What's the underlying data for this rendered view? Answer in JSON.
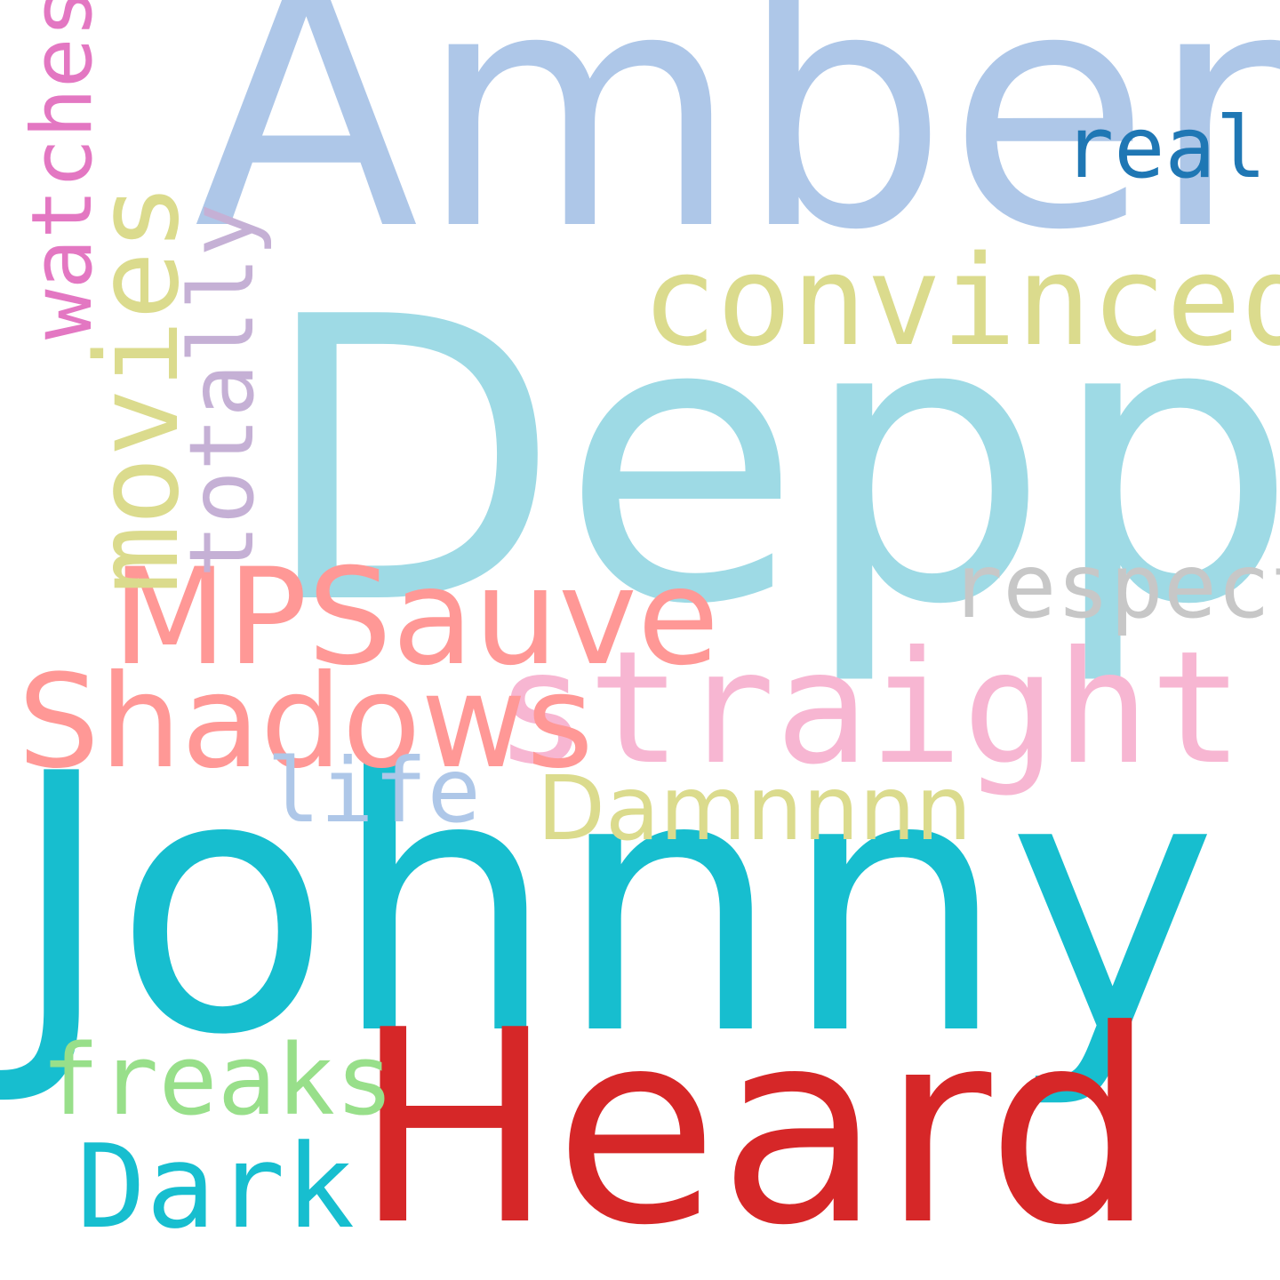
{
  "words": {
    "johnny": {
      "text": "Johnny",
      "color": "#17becf"
    },
    "amber": {
      "text": "Amber",
      "color": "#aec7e8"
    },
    "depp": {
      "text": "Depp",
      "color": "#9edae5"
    },
    "heard": {
      "text": "Heard",
      "color": "#d62728"
    },
    "straight": {
      "text": "straight",
      "color": "#f7b6d2"
    },
    "convinced": {
      "text": "convinced",
      "color": "#dbdb8d"
    },
    "respect": {
      "text": "respect",
      "color": "#c7c7c7"
    },
    "real": {
      "text": "real",
      "color": "#1f77b4"
    },
    "mpsauve": {
      "text": "MPSauve",
      "color": "#ff9896"
    },
    "shadows": {
      "text": "Shadows",
      "color": "#ff9896"
    },
    "life": {
      "text": "life",
      "color": "#aec7e8"
    },
    "damnnnn": {
      "text": "Damnnnn",
      "color": "#dbdb8d"
    },
    "freaks": {
      "text": "freaks",
      "color": "#98df8a"
    },
    "dark": {
      "text": "Dark",
      "color": "#17becf"
    },
    "movies": {
      "text": "movies",
      "color": "#dbdb8d"
    },
    "watches": {
      "text": "watches",
      "color": "#e377c2"
    },
    "totally": {
      "text": "totally",
      "color": "#c5b0d5"
    }
  }
}
